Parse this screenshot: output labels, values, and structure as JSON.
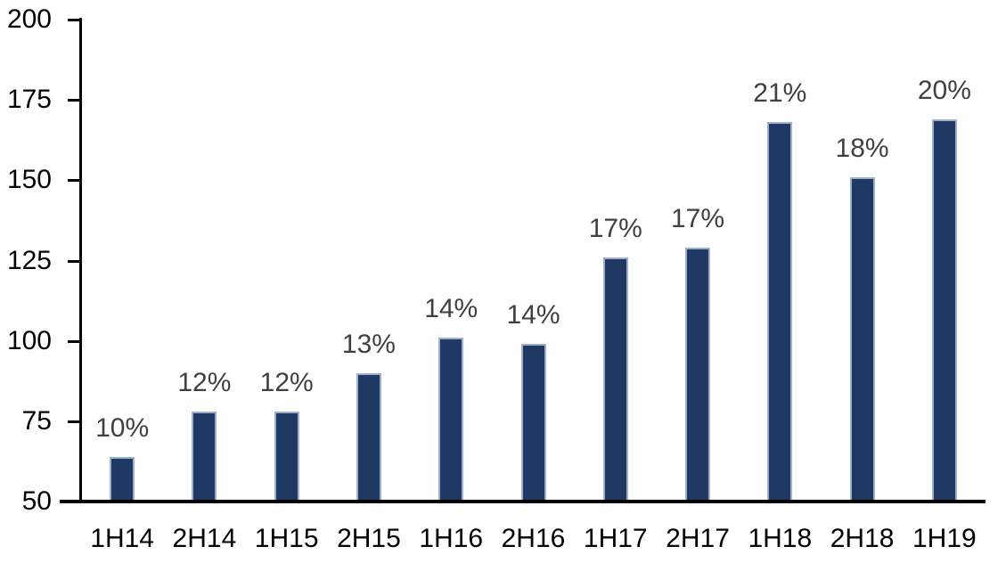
{
  "chart_data": {
    "type": "bar",
    "title": "",
    "xlabel": "",
    "ylabel": "",
    "categories": [
      "1H14",
      "2H14",
      "1H15",
      "2H15",
      "1H16",
      "2H16",
      "1H17",
      "2H17",
      "1H18",
      "2H18",
      "1H19"
    ],
    "values": [
      64,
      78,
      78,
      90,
      101,
      99,
      126,
      129,
      168,
      151,
      169
    ],
    "bar_labels": [
      "10%",
      "12%",
      "12%",
      "13%",
      "14%",
      "14%",
      "17%",
      "17%",
      "21%",
      "18%",
      "20%"
    ],
    "ylim": [
      50,
      200
    ],
    "yticks": [
      50,
      75,
      100,
      125,
      150,
      175,
      200
    ],
    "grid": false,
    "legend": "none",
    "colors": {
      "bar_fill": "#1F3864",
      "bar_border": "#9FAEC9",
      "data_label": "#404040",
      "axis_text": "#000000",
      "axis_line": "#000000",
      "background": "#FFFFFF"
    }
  }
}
